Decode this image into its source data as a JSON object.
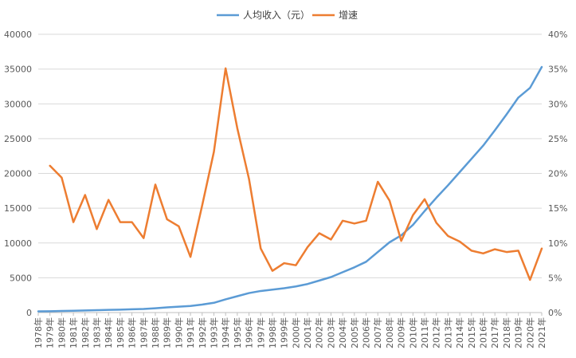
{
  "chart_data": {
    "type": "line",
    "categories": [
      "1978年",
      "1979年",
      "1980年",
      "1981年",
      "1982年",
      "1983年",
      "1984年",
      "1985年",
      "1986年",
      "1987年",
      "1988年",
      "1989年",
      "1990年",
      "1991年",
      "1992年",
      "1993年",
      "1994年",
      "1995年",
      "1996年",
      "1997年",
      "1998年",
      "1999年",
      "2000年",
      "2001年",
      "2002年",
      "2003年",
      "2004年",
      "2005年",
      "2006年",
      "2007年",
      "2008年",
      "2009年",
      "2010年",
      "2011年",
      "2012年",
      "2013年",
      "2014年",
      "2015年",
      "2016年",
      "2017年",
      "2018年",
      "2019年",
      "2020年",
      "2021年"
    ],
    "series": [
      {
        "name": "人均收入（元）",
        "axis": "left",
        "color": "#5b9bd5",
        "values": [
          170,
          190,
          230,
          260,
          300,
          340,
          380,
          420,
          470,
          510,
          620,
          750,
          840,
          950,
          1150,
          1400,
          1900,
          2350,
          2800,
          3100,
          3300,
          3500,
          3750,
          4100,
          4600,
          5100,
          5800,
          6500,
          7300,
          8700,
          10100,
          11100,
          12600,
          14600,
          16500,
          18300,
          20200,
          22100,
          24000,
          26200,
          28500,
          30900,
          32300,
          35300
        ]
      },
      {
        "name": "增速",
        "axis": "right",
        "color": "#ed7d31",
        "values": [
          null,
          21.1,
          19.4,
          13.0,
          16.9,
          12.0,
          16.2,
          13.0,
          13.0,
          10.7,
          18.4,
          13.4,
          12.4,
          8.0,
          15.4,
          23.1,
          35.1,
          26.5,
          19.2,
          9.2,
          6.0,
          7.1,
          6.8,
          9.4,
          11.4,
          10.5,
          13.2,
          12.8,
          13.2,
          18.8,
          16.1,
          10.3,
          14.0,
          16.3,
          12.9,
          11.0,
          10.2,
          8.9,
          8.5,
          9.1,
          8.7,
          8.9,
          4.7,
          9.2
        ]
      }
    ],
    "y_left": {
      "min": 0,
      "max": 40000,
      "ticks": [
        "0",
        "5000",
        "10000",
        "15000",
        "20000",
        "25000",
        "30000",
        "35000",
        "40000"
      ]
    },
    "y_right": {
      "min": 0,
      "max": 40,
      "ticks": [
        "0%",
        "5%",
        "10%",
        "15%",
        "20%",
        "25%",
        "30%",
        "35%",
        "40%"
      ]
    },
    "grid": true,
    "legend_position": "top-center"
  }
}
